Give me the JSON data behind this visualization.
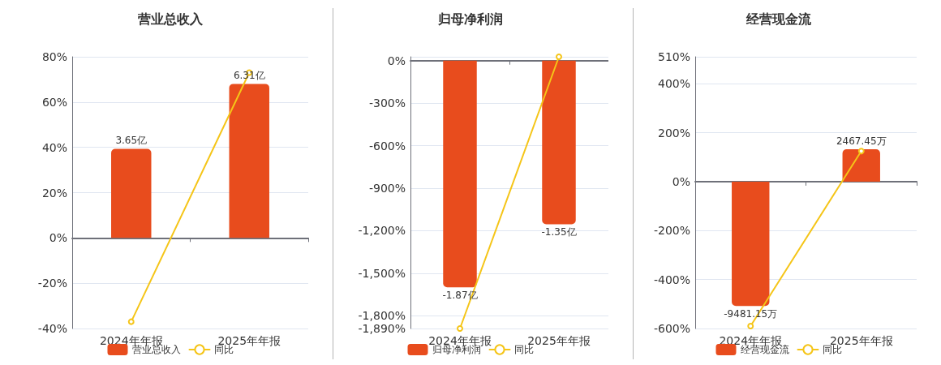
{
  "chart_data": [
    {
      "type": "bar",
      "title": "营业总收入",
      "categories": [
        "2024年年报",
        "2025年年报"
      ],
      "series": [
        {
          "name": "营业总收入",
          "axis": "y2",
          "color": "#e84c1d",
          "values": [
            3.65,
            6.31
          ],
          "value_labels": [
            "3.65亿",
            "6.31亿"
          ]
        },
        {
          "name": "同比",
          "type": "line",
          "color": "#f5c518",
          "values": [
            -37,
            73
          ]
        }
      ],
      "ylim": [
        -40,
        80
      ],
      "yticks": [
        {
          "value": -40,
          "label": "-40%"
        },
        {
          "value": -20,
          "label": "-20%"
        },
        {
          "value": 0,
          "label": "0%"
        },
        {
          "value": 20,
          "label": "20%"
        },
        {
          "value": 40,
          "label": "40%"
        },
        {
          "value": 60,
          "label": "60%"
        },
        {
          "value": 80,
          "label": "80%"
        }
      ],
      "y2lim": [
        -3.71,
        7.42
      ],
      "grid": "y",
      "legend": "bottom",
      "marker": "circle"
    },
    {
      "type": "bar",
      "title": "归母净利润",
      "categories": [
        "2024年年报",
        "2025年年报"
      ],
      "series": [
        {
          "name": "归母净利润",
          "axis": "y2",
          "color": "#e84c1d",
          "values": [
            -1.87,
            -1.35
          ],
          "value_labels": [
            "-1.87亿",
            "-1.35亿"
          ]
        },
        {
          "name": "同比",
          "type": "line",
          "color": "#f5c518",
          "values": [
            -1890,
            27
          ]
        }
      ],
      "ylim": [
        -1890,
        27
      ],
      "yticks": [
        {
          "value": -1890,
          "label": "-1,890%"
        },
        {
          "value": -1800,
          "label": "-1,800%"
        },
        {
          "value": -1500,
          "label": "-1,500%"
        },
        {
          "value": -1200,
          "label": "-1,200%"
        },
        {
          "value": -900,
          "label": "-900%"
        },
        {
          "value": -600,
          "label": "-600%"
        },
        {
          "value": -300,
          "label": "-300%"
        },
        {
          "value": 0,
          "label": "0%"
        },
        {
          "value": 27,
          "label": null
        }
      ],
      "y2lim": [
        -2.21,
        0.0316
      ],
      "grid": "y",
      "legend": "bottom",
      "marker": "circle"
    },
    {
      "type": "bar",
      "title": "经营现金流",
      "categories": [
        "2024年年报",
        "2025年年报"
      ],
      "series": [
        {
          "name": "经营现金流",
          "axis": "y2",
          "color": "#e84c1d",
          "values": [
            -9481.15,
            2467.45
          ],
          "value_labels": [
            "-9481.15万",
            "2467.45万"
          ]
        },
        {
          "name": "同比",
          "type": "line",
          "color": "#f5c518",
          "values": [
            -590,
            125
          ]
        }
      ],
      "ylim": [
        -600,
        510
      ],
      "yticks": [
        {
          "value": -600,
          "label": "-600%"
        },
        {
          "value": -400,
          "label": "-400%"
        },
        {
          "value": -200,
          "label": "-200%"
        },
        {
          "value": 0,
          "label": "0%"
        },
        {
          "value": 200,
          "label": "200%"
        },
        {
          "value": 400,
          "label": "400%"
        },
        {
          "value": 510,
          "label": "510%"
        }
      ],
      "y2lim": [
        -11200,
        9520
      ],
      "grid": "y",
      "legend": "bottom",
      "marker": "circle"
    }
  ]
}
